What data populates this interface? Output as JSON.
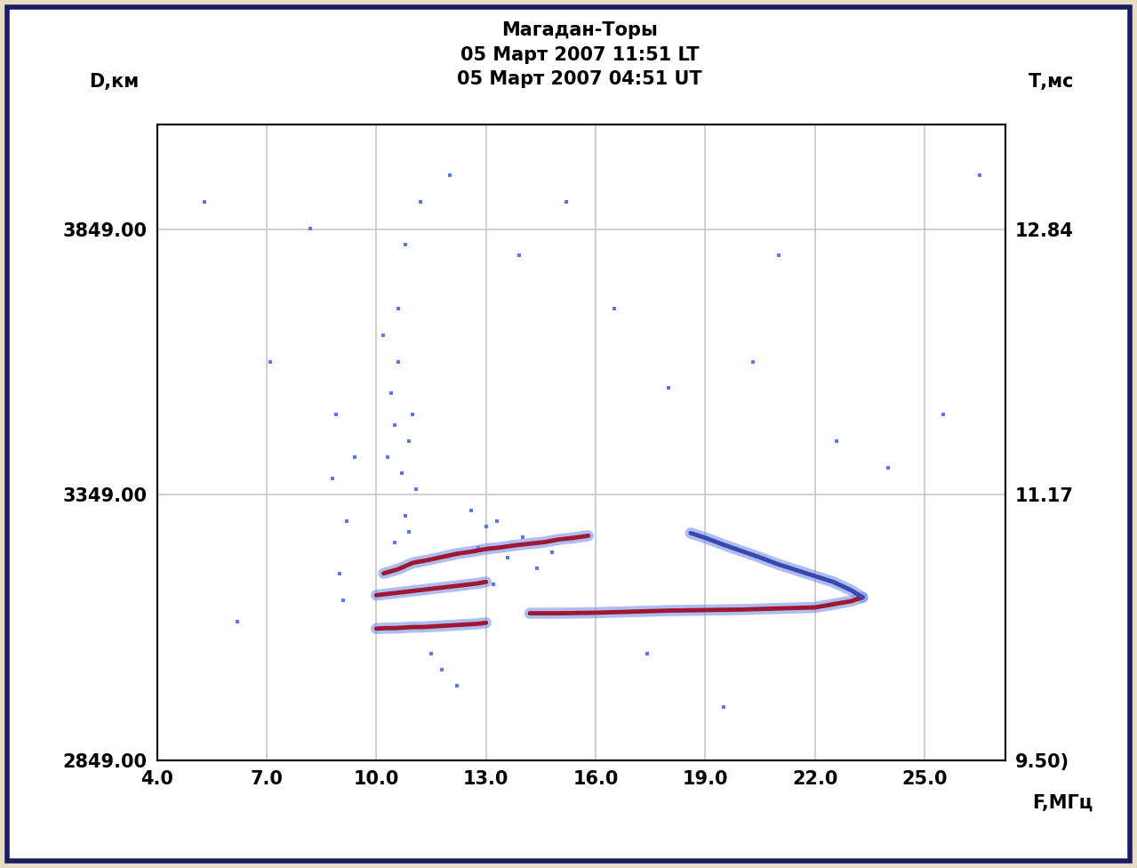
{
  "chart_data": {
    "type": "scatter",
    "title": "Магадан-Торы",
    "subtitle": [
      "05 Март 2007 11:51 LT",
      "05 Март 2007 04:51 UT"
    ],
    "x_label": "F,МГц",
    "y_label": "D,км",
    "y2_label": "Т,мс",
    "xlim": [
      4.0,
      27.2
    ],
    "xticks": [
      4.0,
      7.0,
      10.0,
      13.0,
      16.0,
      19.0,
      22.0,
      25.0
    ],
    "ylim": [
      2849,
      4047
    ],
    "yticks": [
      {
        "value": 2849,
        "label": "2849.00"
      },
      {
        "value": 3349,
        "label": "3349.00"
      },
      {
        "value": 3849,
        "label": "3849.00"
      }
    ],
    "y2lim": [
      9.5,
      13.5
    ],
    "y2ticks": [
      {
        "value": 9.5,
        "label": "9.50)"
      },
      {
        "value": 11.17,
        "label": "11.17"
      },
      {
        "value": 12.84,
        "label": "12.84"
      }
    ],
    "grid": true,
    "series": [
      {
        "type": "scatter",
        "marker": "s",
        "color": "#5a78e8",
        "x": [
          10.3,
          10.5,
          10.7,
          10.9,
          11.1,
          10.4,
          10.6,
          10.8,
          11.0,
          10.2,
          10.5,
          10.9,
          10.6,
          10.8,
          11.2,
          9.0,
          9.2,
          8.8,
          9.4,
          9.1,
          8.9,
          12.8,
          13.0,
          13.3,
          13.6,
          14.0,
          14.4,
          14.8,
          12.6,
          13.2,
          11.5,
          11.8,
          12.2,
          6.2,
          7.1,
          5.3,
          16.5,
          18.0,
          19.5,
          21.0,
          24.0,
          26.5,
          15.2,
          17.4,
          20.3,
          22.6,
          8.2,
          12.0,
          13.9,
          25.5
        ],
        "values": [
          3420,
          3480,
          3390,
          3450,
          3360,
          3540,
          3600,
          3310,
          3500,
          3650,
          3260,
          3280,
          3700,
          3820,
          3900,
          3200,
          3300,
          3380,
          3420,
          3150,
          3500,
          3250,
          3290,
          3300,
          3230,
          3270,
          3210,
          3240,
          3320,
          3180,
          3050,
          3020,
          2990,
          3110,
          3600,
          3900,
          3700,
          3550,
          2950,
          3800,
          3400,
          3950,
          3900,
          3050,
          3600,
          3450,
          3850,
          3950,
          3800,
          3500
        ]
      },
      {
        "type": "line",
        "line_style": "solid",
        "color": "#a01830",
        "x": [
          10.0,
          10.25,
          10.5,
          10.75,
          11.0,
          11.25,
          11.5,
          11.75,
          12.0,
          12.25,
          12.5,
          12.75,
          13.0
        ],
        "values": [
          3097,
          3098,
          3098,
          3099,
          3100,
          3100,
          3101,
          3102,
          3103,
          3104,
          3105,
          3106,
          3108
        ]
      },
      {
        "type": "line",
        "line_style": "solid",
        "color": "#a01830",
        "x": [
          10.0,
          10.25,
          10.5,
          10.75,
          11.0,
          11.25,
          11.5,
          11.75,
          12.0,
          12.25,
          12.5,
          12.75,
          13.0
        ],
        "values": [
          3160,
          3162,
          3164,
          3166,
          3168,
          3170,
          3172,
          3174,
          3176,
          3178,
          3180,
          3182,
          3185
        ]
      },
      {
        "type": "line",
        "line_style": "solid",
        "color": "#a01830",
        "x": [
          10.2,
          10.6,
          11.0,
          11.4,
          11.8,
          12.2,
          12.6,
          13.0,
          13.4,
          13.8,
          14.2,
          14.6,
          15.0,
          15.4,
          15.8
        ],
        "values": [
          3201,
          3209,
          3221,
          3226,
          3232,
          3238,
          3242,
          3247,
          3250,
          3254,
          3257,
          3260,
          3265,
          3268,
          3272
        ]
      },
      {
        "type": "line",
        "line_style": "solid",
        "color": "#a01830",
        "x": [
          14.2,
          15.0,
          16.0,
          17.0,
          18.0,
          19.0,
          20.0,
          21.0,
          22.0,
          22.5,
          23.0,
          23.3
        ],
        "values": [
          3126,
          3126,
          3127,
          3129,
          3131,
          3132,
          3133,
          3135,
          3137,
          3143,
          3149,
          3156
        ]
      },
      {
        "type": "line",
        "line_style": "solid",
        "color": "#3848b0",
        "x": [
          23.3,
          23.0,
          22.5,
          22.0,
          21.5,
          21.0,
          20.5,
          20.0,
          19.5,
          19.0,
          18.6
        ],
        "values": [
          3156,
          3169,
          3185,
          3196,
          3207,
          3218,
          3231,
          3243,
          3255,
          3268,
          3277
        ]
      }
    ]
  }
}
